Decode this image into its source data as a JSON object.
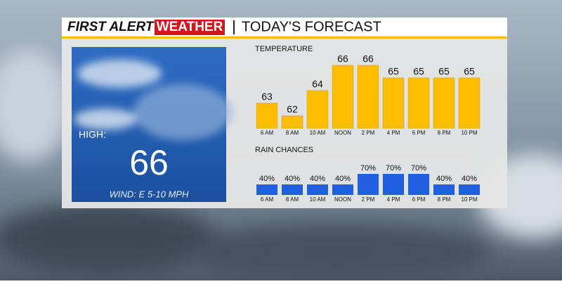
{
  "header": {
    "brand_first": "FIRST ALERT",
    "brand_second": "WEATHER",
    "title": "TODAY'S FORECAST"
  },
  "high_panel": {
    "label": "HIGH:",
    "value": 66,
    "wind": "WIND: E 5-10 MPH"
  },
  "chart_data": [
    {
      "type": "bar",
      "title": "TEMPERATURE",
      "categories": [
        "6 AM",
        "8 AM",
        "10 AM",
        "NOON",
        "2 PM",
        "4 PM",
        "6 PM",
        "8 PM",
        "10 PM"
      ],
      "values": [
        63,
        62,
        64,
        66,
        66,
        65,
        65,
        65,
        65
      ],
      "color": "#ffbf00",
      "ylim": [
        61,
        67
      ]
    },
    {
      "type": "bar",
      "title": "RAIN CHANCES",
      "categories": [
        "6 AM",
        "8 AM",
        "10 AM",
        "NOON",
        "2 PM",
        "4 PM",
        "6 PM",
        "8 PM",
        "10 PM"
      ],
      "values": [
        40,
        40,
        40,
        40,
        70,
        70,
        70,
        40,
        40
      ],
      "value_labels": [
        "40%",
        "40%",
        "40%",
        "40%",
        "70%",
        "70%",
        "70%",
        "40%",
        "40%"
      ],
      "color": "#1f5fe0",
      "ylim": [
        10,
        100
      ]
    }
  ]
}
